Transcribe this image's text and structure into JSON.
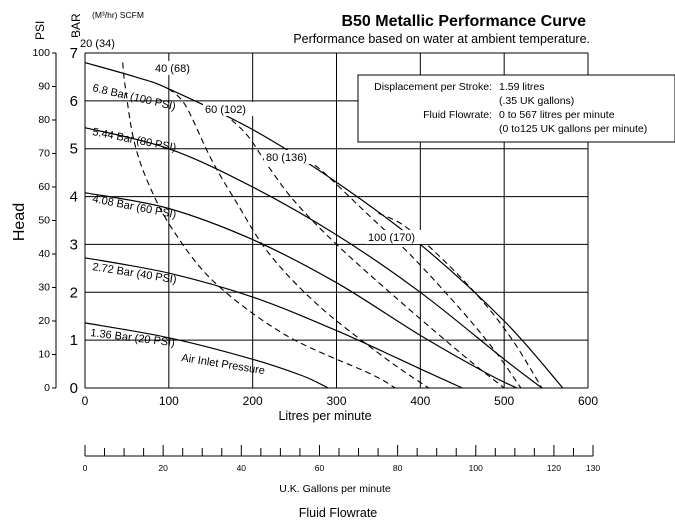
{
  "chart_data": {
    "type": "line",
    "title": "B50 Metallic Performance Curve",
    "subtitle": "Performance based on water at ambient temperature.",
    "xlabel": "Litres per minute",
    "ylabel": "Head",
    "xlim": [
      0,
      600
    ],
    "ylim_bar": [
      0,
      7
    ],
    "ylim_psi": [
      0,
      100
    ],
    "x_ticks": [
      "0",
      "100",
      "200",
      "300",
      "400",
      "500",
      "600"
    ],
    "y_ticks_bar": [
      "0",
      "1",
      "2",
      "3",
      "4",
      "5",
      "6",
      "7"
    ],
    "y_ticks_psi": [
      "0",
      "10",
      "20",
      "30",
      "40",
      "50",
      "60",
      "70",
      "80",
      "90",
      "100"
    ],
    "unit_psi": "PSI",
    "unit_bar": "BAR",
    "air_units": "(M³/hr) SCFM",
    "grid": true,
    "secondary_x": {
      "label": "U.K. Gallons per minute",
      "ticks": [
        "0",
        "20",
        "40",
        "60",
        "80",
        "100",
        "120",
        "130"
      ],
      "range": [
        0,
        130
      ]
    },
    "footer": "Fluid Flowrate",
    "info_box": {
      "rows": [
        {
          "label": "Displacement per Stroke:",
          "value": "1.59 litres"
        },
        {
          "label": "",
          "value": "(.35 UK gallons)"
        },
        {
          "label": "Fluid Flowrate:",
          "value": "0 to 567 litres per minute"
        },
        {
          "label": "",
          "value": "(0 to125 UK gallons per minute)"
        }
      ]
    },
    "pressure_series": [
      {
        "name": "6.8 Bar (100 PSI)",
        "x": [
          0,
          60,
          100,
          200,
          300,
          400,
          500,
          570
        ],
        "y": [
          6.8,
          6.5,
          6.25,
          5.4,
          4.3,
          3.0,
          1.4,
          0
        ]
      },
      {
        "name": "5.44 Bar (80 PSI)",
        "x": [
          0,
          100,
          200,
          300,
          400,
          500,
          545
        ],
        "y": [
          5.44,
          5.0,
          4.2,
          3.2,
          2.0,
          0.6,
          0
        ]
      },
      {
        "name": "4.08 Bar (60 PSI)",
        "x": [
          0,
          100,
          200,
          300,
          400,
          480,
          515
        ],
        "y": [
          4.08,
          3.75,
          3.1,
          2.2,
          1.1,
          0.3,
          0
        ]
      },
      {
        "name": "2.72 Bar (40 PSI)",
        "x": [
          0,
          100,
          200,
          300,
          400,
          450
        ],
        "y": [
          2.72,
          2.4,
          1.9,
          1.2,
          0.4,
          0
        ]
      },
      {
        "name": "1.36 Bar (20 PSI)",
        "x": [
          0,
          100,
          200,
          260,
          290
        ],
        "y": [
          1.36,
          1.05,
          0.6,
          0.25,
          0
        ]
      }
    ],
    "air_series": [
      {
        "name": "20 (34)",
        "x": [
          45,
          48,
          58,
          75,
          105,
          155,
          240,
          340,
          370
        ],
        "y": [
          6.8,
          6.3,
          5.2,
          4.3,
          3.3,
          2.2,
          1.1,
          0.3,
          0
        ]
      },
      {
        "name": "40 (68)",
        "x": [
          100,
          120,
          150,
          180,
          220,
          280,
          360,
          410
        ],
        "y": [
          6.25,
          5.9,
          4.8,
          3.9,
          2.8,
          1.7,
          0.6,
          0
        ]
      },
      {
        "name": "60 (102)",
        "x": [
          175,
          195,
          220,
          250,
          300,
          370,
          450,
          500
        ],
        "y": [
          5.6,
          5.25,
          4.6,
          3.9,
          3.0,
          1.9,
          0.7,
          0
        ]
      },
      {
        "name": "80 (136)",
        "x": [
          255,
          285,
          330,
          390,
          450,
          490,
          520
        ],
        "y": [
          4.9,
          4.5,
          3.75,
          2.75,
          1.6,
          0.75,
          0
        ]
      },
      {
        "name": "100 (170)",
        "x": [
          350,
          380,
          420,
          470,
          510,
          545
        ],
        "y": [
          3.65,
          3.4,
          2.8,
          1.9,
          1.0,
          0
        ]
      }
    ],
    "annotation": "Air Inlet Pressure"
  }
}
